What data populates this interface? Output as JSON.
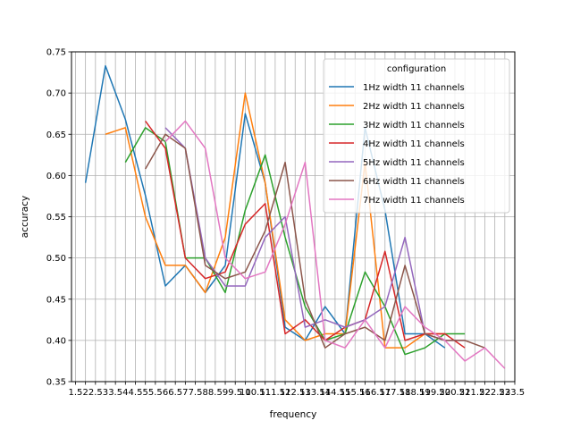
{
  "chart_data": {
    "type": "line",
    "title": "",
    "xlabel": "frequency",
    "ylabel": "accuracy",
    "xlim": [
      1.3,
      23.5
    ],
    "ylim": [
      0.35,
      0.75
    ],
    "x_tick_step": 0.5,
    "x_tick_labels": [
      "1.5",
      "2",
      "2.5",
      "3",
      "3.5",
      "4",
      "4.5",
      "5",
      "5.5",
      "6",
      "6.5",
      "7",
      "7.5",
      "8",
      "8.5",
      "9",
      "9.5",
      "10",
      "10.5",
      "11",
      "11.5",
      "12",
      "12.5",
      "13",
      "13.5",
      "14",
      "14.5",
      "15",
      "15.5",
      "16",
      "16.5",
      "17",
      "17.5",
      "18",
      "18.5",
      "19",
      "19.5",
      "20",
      "20.5",
      "21",
      "21.5",
      "22",
      "22.5",
      "23",
      "23.5"
    ],
    "y_ticks": [
      0.35,
      0.4,
      0.45,
      0.5,
      0.55,
      0.6,
      0.65,
      0.7,
      0.75
    ],
    "y_tick_labels": [
      "0.35",
      "0.40",
      "0.45",
      "0.50",
      "0.55",
      "0.60",
      "0.65",
      "0.70",
      "0.75"
    ],
    "grid": true,
    "legend": {
      "title": "configuration",
      "position": "upper right"
    },
    "series": [
      {
        "name": "1Hz width 11 channels",
        "color": "#1f77b4",
        "x": [
          2,
          3,
          4,
          5,
          6,
          7,
          8,
          9,
          10,
          11,
          12,
          13,
          14,
          15,
          16,
          17,
          18,
          19,
          20
        ],
        "y": [
          0.591,
          0.733,
          0.668,
          0.576,
          0.466,
          0.491,
          0.458,
          0.491,
          0.675,
          0.591,
          0.416,
          0.4,
          0.441,
          0.408,
          0.658,
          0.558,
          0.408,
          0.408,
          0.391
        ]
      },
      {
        "name": "2Hz width 11 channels",
        "color": "#ff7f0e",
        "x": [
          3,
          4,
          5,
          6,
          7,
          8,
          9,
          10,
          11,
          12,
          13,
          14,
          15,
          16,
          17,
          18,
          19,
          20
        ],
        "y": [
          0.65,
          0.658,
          0.55,
          0.491,
          0.491,
          0.458,
          0.525,
          0.7,
          0.591,
          0.425,
          0.4,
          0.408,
          0.408,
          0.616,
          0.391,
          0.391,
          0.408,
          0.408
        ]
      },
      {
        "name": "3Hz width 11 channels",
        "color": "#2ca02c",
        "x": [
          4,
          5,
          6,
          7,
          8,
          9,
          10,
          11,
          12,
          13,
          14,
          15,
          16,
          17,
          18,
          19,
          20,
          21
        ],
        "y": [
          0.616,
          0.658,
          0.641,
          0.5,
          0.5,
          0.458,
          0.558,
          0.625,
          0.525,
          0.441,
          0.4,
          0.408,
          0.483,
          0.441,
          0.383,
          0.391,
          0.408,
          0.408
        ]
      },
      {
        "name": "4Hz width 11 channels",
        "color": "#d62728",
        "x": [
          5,
          6,
          7,
          8,
          9,
          10,
          11,
          12,
          13,
          14,
          15,
          16,
          17,
          18,
          19,
          20,
          21
        ],
        "y": [
          0.666,
          0.633,
          0.5,
          0.475,
          0.483,
          0.541,
          0.566,
          0.408,
          0.425,
          0.4,
          0.416,
          0.425,
          0.508,
          0.4,
          0.408,
          0.408,
          0.391
        ]
      },
      {
        "name": "5Hz width 11 channels",
        "color": "#9467bd",
        "x": [
          6,
          7,
          8,
          9,
          10,
          11,
          12,
          13,
          14,
          15,
          16,
          17,
          18,
          19,
          20,
          21
        ],
        "y": [
          0.658,
          0.633,
          0.5,
          0.466,
          0.466,
          0.525,
          0.55,
          0.416,
          0.425,
          0.416,
          0.425,
          0.441,
          0.525,
          0.408,
          0.4,
          0.4
        ]
      },
      {
        "name": "6Hz width 11 channels",
        "color": "#8c564b",
        "x": [
          5,
          6,
          7,
          8,
          9,
          10,
          11,
          12,
          13,
          14,
          15,
          16,
          17,
          18,
          19,
          20,
          21,
          22
        ],
        "y": [
          0.608,
          0.65,
          0.633,
          0.491,
          0.475,
          0.483,
          0.533,
          0.616,
          0.45,
          0.391,
          0.408,
          0.416,
          0.4,
          0.491,
          0.408,
          0.4,
          0.4,
          0.391
        ]
      },
      {
        "name": "7Hz width 11 channels",
        "color": "#e377c2",
        "x": [
          6,
          7,
          8,
          9,
          10,
          11,
          12,
          13,
          14,
          15,
          16,
          17,
          18,
          19,
          20,
          21,
          22,
          23
        ],
        "y": [
          0.641,
          0.666,
          0.633,
          0.5,
          0.475,
          0.483,
          0.541,
          0.616,
          0.4,
          0.391,
          0.425,
          0.391,
          0.441,
          0.416,
          0.4,
          0.375,
          0.391,
          0.366
        ]
      }
    ]
  }
}
